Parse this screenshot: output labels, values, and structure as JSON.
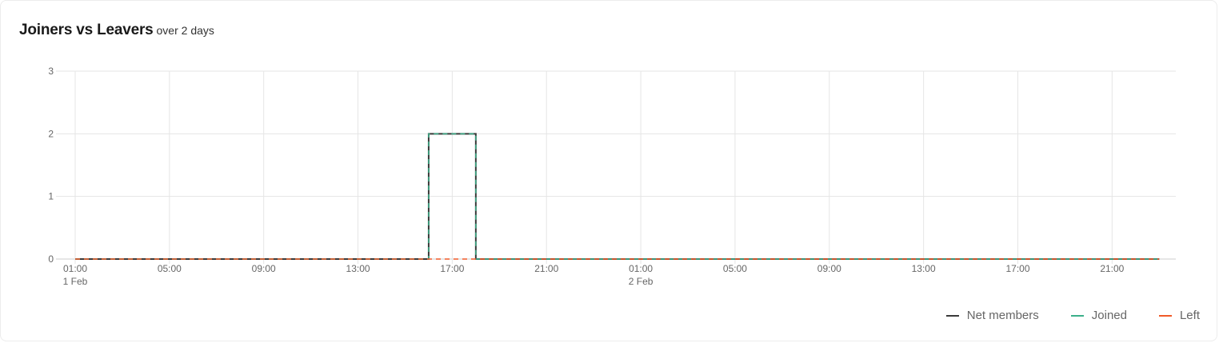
{
  "card": {
    "title": "Joiners vs Leavers",
    "subtitle": "over 2 days"
  },
  "chart_data": {
    "type": "line",
    "step": true,
    "x_start": "1 Feb 01:00",
    "x_end": "2 Feb 23:00",
    "x_ticks": [
      {
        "label": "01:00",
        "date": "1 Feb",
        "hour": 1
      },
      {
        "label": "05:00",
        "date": "",
        "hour": 5
      },
      {
        "label": "09:00",
        "date": "",
        "hour": 9
      },
      {
        "label": "13:00",
        "date": "",
        "hour": 13
      },
      {
        "label": "17:00",
        "date": "",
        "hour": 17
      },
      {
        "label": "21:00",
        "date": "",
        "hour": 21
      },
      {
        "label": "01:00",
        "date": "2 Feb",
        "hour": 25
      },
      {
        "label": "05:00",
        "date": "",
        "hour": 29
      },
      {
        "label": "09:00",
        "date": "",
        "hour": 33
      },
      {
        "label": "13:00",
        "date": "",
        "hour": 37
      },
      {
        "label": "17:00",
        "date": "",
        "hour": 41
      },
      {
        "label": "21:00",
        "date": "",
        "hour": 45
      }
    ],
    "y_ticks": [
      0,
      1,
      2,
      3
    ],
    "ylim": [
      0,
      3
    ],
    "grid": true,
    "legend_position": "bottom-right",
    "series": [
      {
        "name": "Net members",
        "color": "#3a3a3a",
        "dashed": false,
        "points": [
          [
            1,
            0
          ],
          [
            16,
            0
          ],
          [
            16,
            2
          ],
          [
            18,
            0
          ],
          [
            47,
            0
          ]
        ]
      },
      {
        "name": "Joined",
        "color": "#3cb08a",
        "dashed": true,
        "points": [
          [
            1,
            0
          ],
          [
            16,
            0
          ],
          [
            16,
            2
          ],
          [
            18,
            0
          ],
          [
            47,
            0
          ]
        ]
      },
      {
        "name": "Left",
        "color": "#f05a28",
        "dashed": true,
        "points": [
          [
            1,
            0
          ],
          [
            47,
            0
          ]
        ]
      }
    ]
  }
}
